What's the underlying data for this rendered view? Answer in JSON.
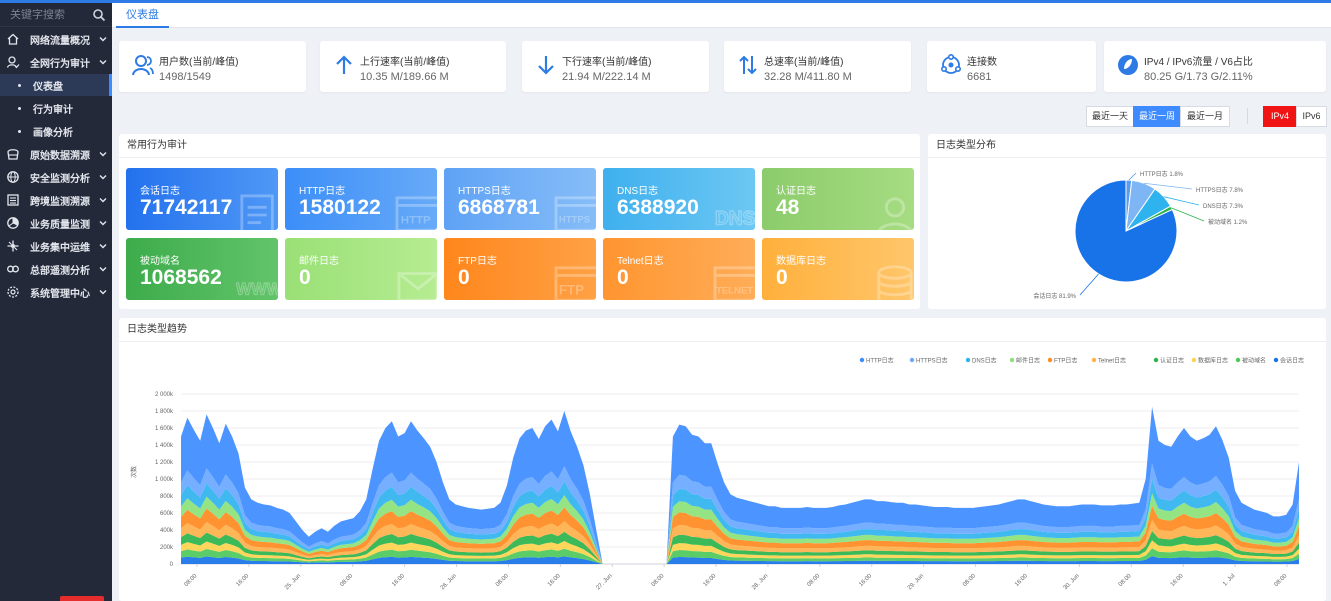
{
  "search": {
    "placeholder": "关键字搜索"
  },
  "sidebar": {
    "items": [
      {
        "label": "网络流量概况",
        "icon": "home-icon"
      },
      {
        "label": "全网行为审计",
        "icon": "user-icon"
      },
      {
        "label": "仪表盘",
        "sub": true,
        "active": true
      },
      {
        "label": "行为审计",
        "sub": true
      },
      {
        "label": "画像分析",
        "sub": true
      },
      {
        "label": "原始数据溯源",
        "icon": "database-icon"
      },
      {
        "label": "安全监测分析",
        "icon": "globe-icon"
      },
      {
        "label": "跨境监测溯源",
        "icon": "list-icon"
      },
      {
        "label": "业务质量监测",
        "icon": "dashboard-icon"
      },
      {
        "label": "业务集中运维",
        "icon": "network-icon"
      },
      {
        "label": "总部遥测分析",
        "icon": "link-icon"
      },
      {
        "label": "系统管理中心",
        "icon": "gear-icon"
      }
    ]
  },
  "tabs": {
    "dashboard": "仪表盘"
  },
  "stats": [
    {
      "title": "用户数(当前/峰值)",
      "value": "1498/1549",
      "icon": "users-icon"
    },
    {
      "title": "上行速率(当前/峰值)",
      "value": "10.35 M/189.66 M",
      "icon": "arrow-up-icon"
    },
    {
      "title": "下行速率(当前/峰值)",
      "value": "21.94 M/222.14 M",
      "icon": "arrow-down-icon"
    },
    {
      "title": "总速率(当前/峰值)",
      "value": "32.28 M/411.80 M",
      "icon": "arrows-updown-icon"
    },
    {
      "title": "连接数",
      "value": "6681",
      "icon": "connection-icon"
    },
    {
      "title": "IPv4 / IPv6流量 / V6占比",
      "value": "80.25 G/1.73 G/2.11%",
      "icon": "ipv6-icon"
    }
  ],
  "range": {
    "day": "最近一天",
    "week": "最近一周",
    "month": "最近一月",
    "ipv4": "IPv4",
    "ipv6": "IPv6"
  },
  "panels": {
    "audit": "常用行为审计",
    "pie": "日志类型分布",
    "trend": "日志类型趋势"
  },
  "tiles": [
    {
      "label": "会话日志",
      "value": "71742117"
    },
    {
      "label": "HTTP日志",
      "value": "1580122"
    },
    {
      "label": "HTTPS日志",
      "value": "6868781"
    },
    {
      "label": "DNS日志",
      "value": "6388920"
    },
    {
      "label": "认证日志",
      "value": "48"
    },
    {
      "label": "被动域名",
      "value": "1068562"
    },
    {
      "label": "邮件日志",
      "value": "0"
    },
    {
      "label": "FTP日志",
      "value": "0"
    },
    {
      "label": "Telnet日志",
      "value": "0"
    },
    {
      "label": "数据库日志",
      "value": "0"
    }
  ],
  "tile_deco": [
    "HTTP",
    "HTTPS",
    "DNS",
    "WWW",
    "FTP",
    "TELNET"
  ],
  "pie_labels": {
    "http": "HTTP日志 1.8%",
    "https": "HTTPS日志 7.8%",
    "dns": "DNS日志 7.3%",
    "passive": "被动域名 1.2%",
    "session": "会话日志 81.9%"
  },
  "colors": {
    "accent": "#2f7be5",
    "sidebar_bg": "#24293a",
    "red": "#f01414"
  },
  "chart_data": [
    {
      "type": "pie",
      "slices": [
        {
          "name": "会话日志",
          "value": 81.9,
          "color": "#1873e8"
        },
        {
          "name": "HTTP日志",
          "value": 1.8,
          "color": "#5b9bf0"
        },
        {
          "name": "HTTPS日志",
          "value": 7.8,
          "color": "#7db5f5"
        },
        {
          "name": "DNS日志",
          "value": 7.3,
          "color": "#2fb3ee"
        },
        {
          "name": "被动域名",
          "value": 1.2,
          "color": "#2bb34a"
        }
      ]
    },
    {
      "type": "area",
      "ylabel": "次数",
      "ylim": [
        0,
        2000000
      ],
      "y_ticks": [
        "0",
        "200k",
        "400k",
        "600k",
        "800k",
        "1 000k",
        "1 200k",
        "1 400k",
        "1 600k",
        "1 800k",
        "2 000k"
      ],
      "x_ticks": [
        "08:00",
        "16:00",
        "25. Jun",
        "08:00",
        "16:00",
        "26. Jun",
        "08:00",
        "16:00",
        "27. Jun",
        "08:00",
        "16:00",
        "28. Jun",
        "08:00",
        "16:00",
        "29. Jun",
        "08:00",
        "16:00",
        "30. Jun",
        "08:00",
        "16:00",
        "1. Jul",
        "08:00"
      ],
      "legend": [
        "HTTP日志",
        "HTTPS日志",
        "DNS日志",
        "邮件日志",
        "FTP日志",
        "Telnet日志",
        "认证日志",
        "数据库日志",
        "被动域名",
        "会话日志"
      ],
      "legend_colors": [
        "#3d8bff",
        "#6aa8ff",
        "#2fb3ee",
        "#8ce27a",
        "#ff8a1f",
        "#ffb04a",
        "#2bb34a",
        "#ffd24d",
        "#4cc95c",
        "#1873e8"
      ],
      "totals": [
        1500000,
        1720000,
        1580000,
        1450000,
        1760000,
        1600000,
        1420000,
        1650000,
        1500000,
        1300000,
        900000,
        760000,
        720000,
        700000,
        690000,
        660000,
        640000,
        600000,
        500000,
        400000,
        320000,
        380000,
        420000,
        380000,
        450000,
        500000,
        520000,
        540000,
        620000,
        760000,
        1120000,
        1450000,
        1600000,
        1680000,
        1500000,
        1540000,
        1680000,
        1570000,
        1480000,
        1380000,
        1200000,
        960000,
        760000,
        700000,
        680000,
        660000,
        650000,
        640000,
        650000,
        660000,
        720000,
        920000,
        1250000,
        1480000,
        1570000,
        1600000,
        1470000,
        1620000,
        1700000,
        1560000,
        1800000,
        1560000,
        1380000,
        1160000,
        820000,
        400000,
        0,
        0,
        0,
        0,
        0,
        0,
        0,
        0,
        0,
        0,
        0,
        1500000,
        1640000,
        1620000,
        1520000,
        1500000,
        1420000,
        1420000,
        1180000,
        960000,
        820000,
        780000,
        760000,
        740000,
        720000,
        700000,
        680000,
        680000,
        660000,
        660000,
        660000,
        660000,
        670000,
        660000,
        660000,
        660000,
        670000,
        690000,
        700000,
        720000,
        740000,
        760000,
        760000,
        740000,
        740000,
        730000,
        720000,
        720000,
        700000,
        700000,
        690000,
        680000,
        670000,
        670000,
        670000,
        660000,
        660000,
        660000,
        660000,
        670000,
        680000,
        690000,
        700000,
        720000,
        740000,
        760000,
        760000,
        740000,
        720000,
        700000,
        690000,
        680000,
        680000,
        680000,
        690000,
        700000,
        700000,
        700000,
        690000,
        690000,
        690000,
        700000,
        700000,
        710000,
        720000,
        1000000,
        1850000,
        1450000,
        1400000,
        1380000,
        1500000,
        1600000,
        1500000,
        1450000,
        1480000,
        1520000,
        1620000,
        1460000,
        1250000,
        860000,
        720000,
        680000,
        640000,
        620000,
        600000,
        560000,
        560000,
        580000,
        700000,
        1200000
      ],
      "share": [
        0.36,
        0.1,
        0.09,
        0.08,
        0.09,
        0.07,
        0.06,
        0.05,
        0.05,
        0.05
      ]
    }
  ]
}
